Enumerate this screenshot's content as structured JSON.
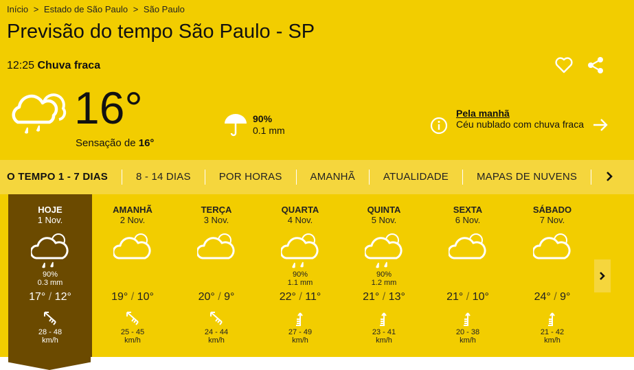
{
  "breadcrumb": [
    "Início",
    ">",
    "Estado de São Paulo",
    ">",
    "São Paulo"
  ],
  "title": "Previsão do tempo São Paulo - SP",
  "current": {
    "time": "12:25",
    "condition": "Chuva fraca",
    "temp": "16°",
    "feels_label": "Sensação de",
    "feels": "16°",
    "rain_prob": "90%",
    "rain_mm": "0.1 mm",
    "morning_title": "Pela manhã",
    "morning_text": "Céu nublado com chuva fraca",
    "icon": "cloud-rain-icon"
  },
  "tabs": [
    "O TEMPO 1 - 7 DIAS",
    "8 - 14 DIAS",
    "POR HORAS",
    "AMANHÃ",
    "ATUALIDADE",
    "MAPAS DE NUVENS"
  ],
  "colors": {
    "accent": "#f2cd00",
    "today": "#6b4a00",
    "tabbar": "#f5d63d"
  },
  "days": [
    {
      "name": "HOJE",
      "date": "1 Nov.",
      "rain": true,
      "prob": "90%",
      "mm": "0.3 mm",
      "max": "17°",
      "min": "12°",
      "wind": "28 - 48",
      "unit": "km/h",
      "wind_dir": "nw"
    },
    {
      "name": "AMANHÃ",
      "date": "2 Nov.",
      "rain": false,
      "prob": "",
      "mm": "",
      "max": "19°",
      "min": "10°",
      "wind": "25 - 45",
      "unit": "km/h",
      "wind_dir": "nw"
    },
    {
      "name": "TERÇA",
      "date": "3 Nov.",
      "rain": false,
      "prob": "",
      "mm": "",
      "max": "20°",
      "min": "9°",
      "wind": "24 - 44",
      "unit": "km/h",
      "wind_dir": "nw"
    },
    {
      "name": "QUARTA",
      "date": "4 Nov.",
      "rain": true,
      "prob": "90%",
      "mm": "1.1 mm",
      "max": "22°",
      "min": "11°",
      "wind": "27 - 49",
      "unit": "km/h",
      "wind_dir": "n"
    },
    {
      "name": "QUINTA",
      "date": "5 Nov.",
      "rain": true,
      "prob": "90%",
      "mm": "1.2 mm",
      "max": "21°",
      "min": "13°",
      "wind": "23 - 41",
      "unit": "km/h",
      "wind_dir": "n"
    },
    {
      "name": "SEXTA",
      "date": "6 Nov.",
      "rain": false,
      "prob": "",
      "mm": "",
      "max": "21°",
      "min": "10°",
      "wind": "20 - 38",
      "unit": "km/h",
      "wind_dir": "n"
    },
    {
      "name": "SÁBADO",
      "date": "7 Nov.",
      "rain": false,
      "prob": "",
      "mm": "",
      "max": "24°",
      "min": "9°",
      "wind": "21 - 42",
      "unit": "km/h",
      "wind_dir": "n"
    }
  ]
}
